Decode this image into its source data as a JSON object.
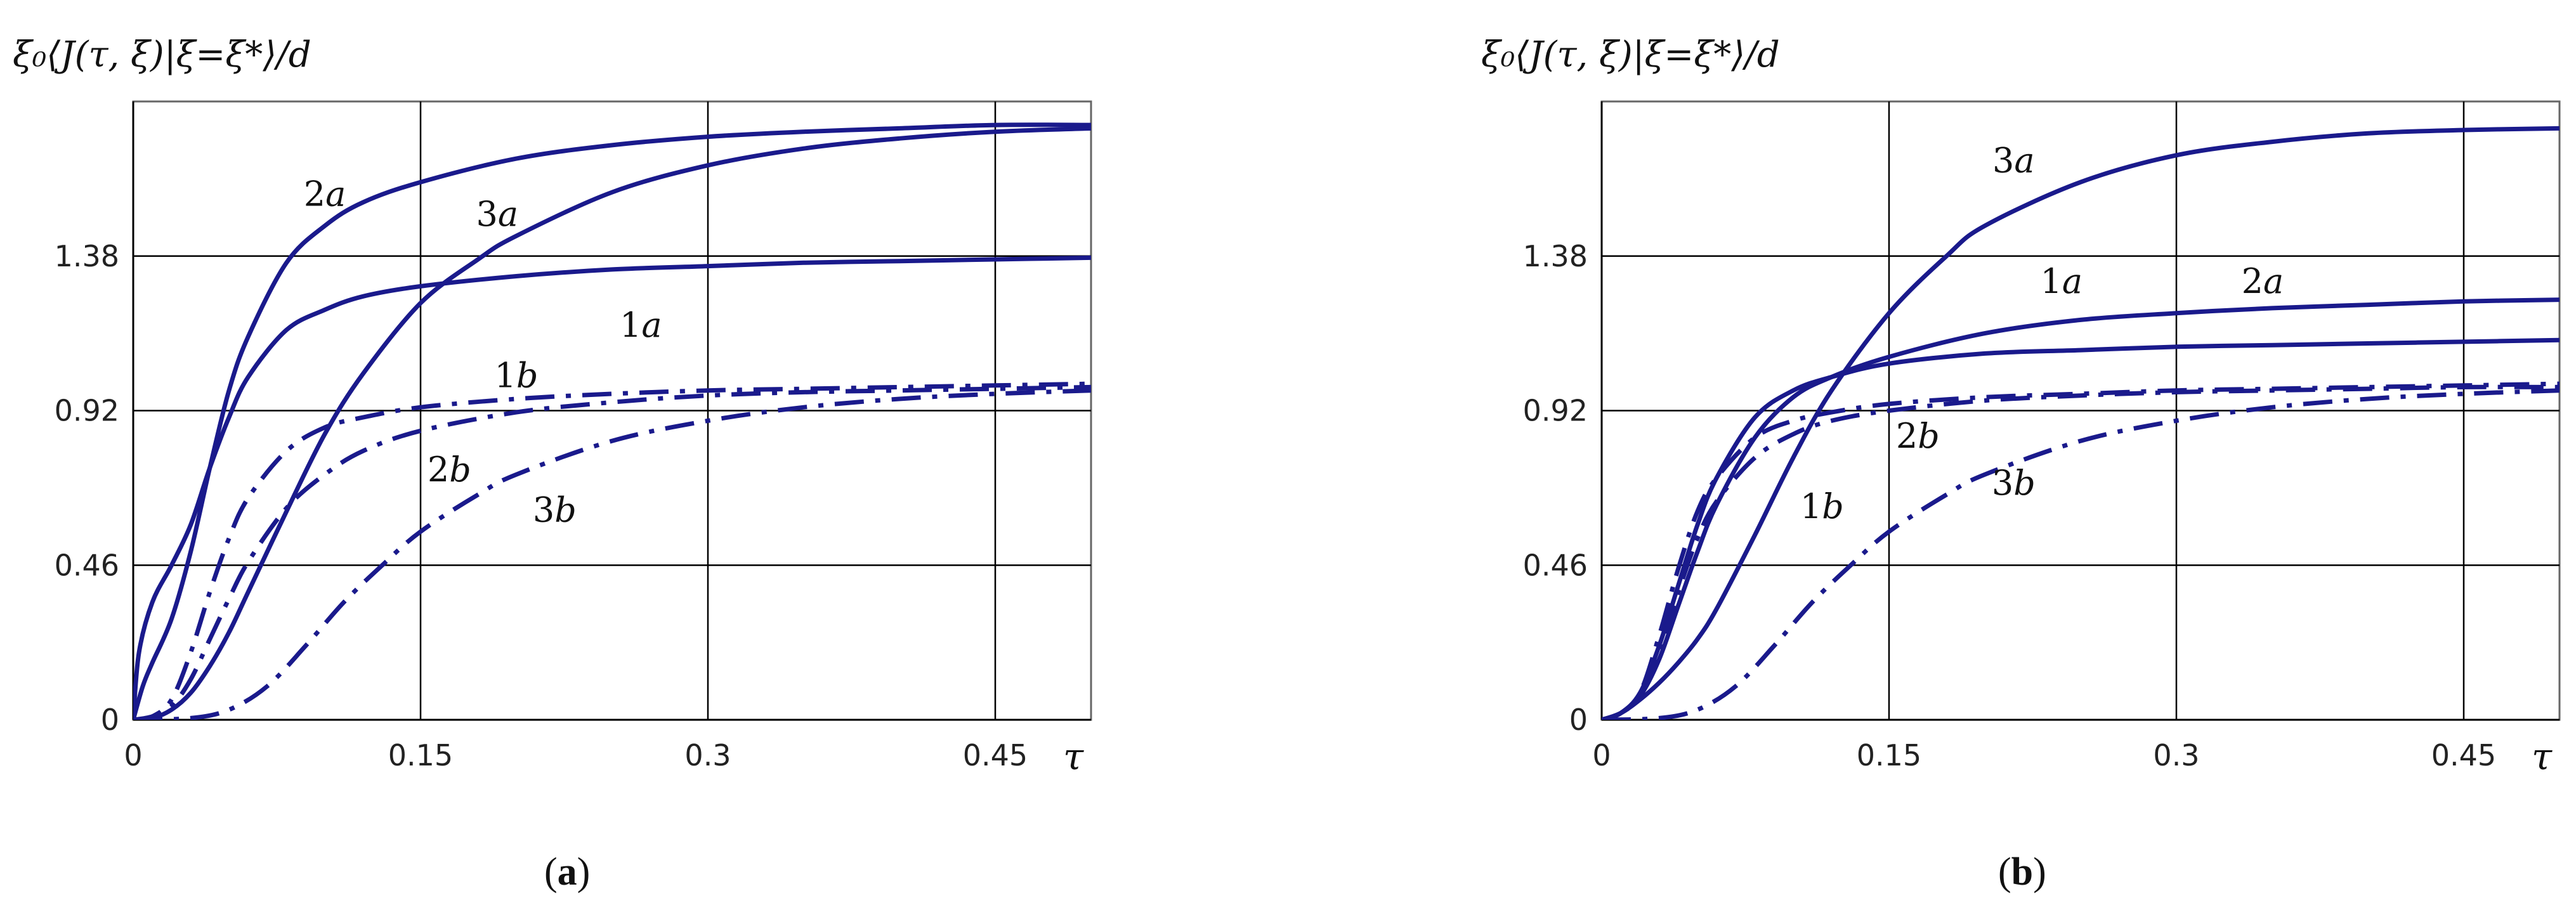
{
  "chart_data": [
    {
      "type": "line",
      "panel": "a",
      "caption_label": "a",
      "ylabel": "ξ₀⟨J(τ, ξ)|ξ=ξ*⟩/d",
      "xlabel": "τ",
      "xlim": [
        0,
        0.5
      ],
      "ylim": [
        0,
        1.84
      ],
      "x_ticks": [
        0,
        0.15,
        0.3,
        0.45
      ],
      "x_tick_labels": [
        "0",
        "0.15",
        "0.3",
        "0.45"
      ],
      "y_ticks": [
        0,
        0.46,
        0.92,
        1.38
      ],
      "y_tick_labels": [
        "0",
        "0.46",
        "0.92",
        "1.38"
      ],
      "grid": true,
      "series": [
        {
          "name": "1a",
          "style": "solid",
          "x": [
            0,
            0.003,
            0.01,
            0.02,
            0.03,
            0.04,
            0.05,
            0.06,
            0.08,
            0.1,
            0.12,
            0.15,
            0.2,
            0.25,
            0.3,
            0.35,
            0.4,
            0.45,
            0.5
          ],
          "y": [
            0,
            0.2,
            0.35,
            0.46,
            0.58,
            0.75,
            0.9,
            1.02,
            1.16,
            1.22,
            1.26,
            1.29,
            1.32,
            1.34,
            1.35,
            1.36,
            1.365,
            1.37,
            1.375
          ]
        },
        {
          "name": "2a",
          "style": "solid",
          "x": [
            0,
            0.005,
            0.01,
            0.02,
            0.03,
            0.04,
            0.05,
            0.06,
            0.08,
            0.1,
            0.12,
            0.15,
            0.2,
            0.25,
            0.3,
            0.35,
            0.4,
            0.45,
            0.5
          ],
          "y": [
            0,
            0.1,
            0.17,
            0.3,
            0.5,
            0.75,
            0.98,
            1.14,
            1.36,
            1.47,
            1.54,
            1.6,
            1.67,
            1.71,
            1.735,
            1.75,
            1.76,
            1.77,
            1.77
          ]
        },
        {
          "name": "3a",
          "style": "solid",
          "x": [
            0,
            0.01,
            0.02,
            0.03,
            0.04,
            0.05,
            0.06,
            0.08,
            0.1,
            0.12,
            0.15,
            0.18,
            0.2,
            0.25,
            0.3,
            0.35,
            0.4,
            0.45,
            0.5
          ],
          "y": [
            0,
            0.005,
            0.03,
            0.08,
            0.16,
            0.26,
            0.38,
            0.62,
            0.85,
            1.03,
            1.24,
            1.37,
            1.44,
            1.57,
            1.65,
            1.7,
            1.73,
            1.75,
            1.76
          ]
        },
        {
          "name": "1b",
          "style": "dashdot",
          "x": [
            0,
            0.01,
            0.02,
            0.03,
            0.04,
            0.05,
            0.06,
            0.08,
            0.1,
            0.12,
            0.15,
            0.2,
            0.25,
            0.3,
            0.35,
            0.4,
            0.45,
            0.5
          ],
          "y": [
            0,
            0.01,
            0.06,
            0.2,
            0.38,
            0.54,
            0.66,
            0.8,
            0.87,
            0.9,
            0.93,
            0.955,
            0.97,
            0.98,
            0.985,
            0.99,
            0.995,
            1.0
          ]
        },
        {
          "name": "2b",
          "style": "dashdot",
          "x": [
            0,
            0.01,
            0.02,
            0.03,
            0.04,
            0.05,
            0.06,
            0.08,
            0.1,
            0.12,
            0.15,
            0.2,
            0.25,
            0.3,
            0.35,
            0.4,
            0.45,
            0.5
          ],
          "y": [
            0,
            0.01,
            0.04,
            0.12,
            0.24,
            0.36,
            0.47,
            0.63,
            0.73,
            0.8,
            0.86,
            0.915,
            0.945,
            0.965,
            0.975,
            0.98,
            0.985,
            0.99
          ]
        },
        {
          "name": "3b",
          "style": "dashdot",
          "x": [
            0,
            0.03,
            0.05,
            0.07,
            0.09,
            0.11,
            0.13,
            0.15,
            0.18,
            0.2,
            0.25,
            0.3,
            0.35,
            0.4,
            0.45,
            0.5
          ],
          "y": [
            0,
            0.005,
            0.03,
            0.1,
            0.22,
            0.35,
            0.46,
            0.56,
            0.67,
            0.73,
            0.83,
            0.89,
            0.93,
            0.955,
            0.97,
            0.98
          ]
        }
      ],
      "labels": [
        {
          "text": "2",
          "var": "a",
          "x": 0.1,
          "y": 1.53
        },
        {
          "text": "3",
          "var": "a",
          "x": 0.19,
          "y": 1.47
        },
        {
          "text": "1",
          "var": "a",
          "x": 0.265,
          "y": 1.14
        },
        {
          "text": "1",
          "var": "b",
          "x": 0.2,
          "y": 0.99
        },
        {
          "text": "2",
          "var": "b",
          "x": 0.165,
          "y": 0.71
        },
        {
          "text": "3",
          "var": "b",
          "x": 0.22,
          "y": 0.59
        }
      ]
    },
    {
      "type": "line",
      "panel": "b",
      "caption_label": "b",
      "ylabel": "ξ₀⟨J(τ, ξ)|ξ=ξ*⟩/d",
      "xlabel": "τ",
      "xlim": [
        0,
        0.5
      ],
      "ylim": [
        0,
        1.84
      ],
      "x_ticks": [
        0,
        0.15,
        0.3,
        0.45
      ],
      "x_tick_labels": [
        "0",
        "0.15",
        "0.3",
        "0.45"
      ],
      "y_ticks": [
        0,
        0.46,
        0.92,
        1.38
      ],
      "y_tick_labels": [
        "0",
        "0.46",
        "0.92",
        "1.38"
      ],
      "grid": true,
      "series": [
        {
          "name": "1a",
          "style": "solid",
          "x": [
            0,
            0.01,
            0.02,
            0.03,
            0.04,
            0.05,
            0.06,
            0.08,
            0.1,
            0.12,
            0.15,
            0.2,
            0.25,
            0.3,
            0.35,
            0.4,
            0.45,
            0.5
          ],
          "y": [
            0,
            0.02,
            0.08,
            0.22,
            0.4,
            0.58,
            0.72,
            0.9,
            0.98,
            1.02,
            1.06,
            1.09,
            1.1,
            1.11,
            1.115,
            1.12,
            1.125,
            1.13
          ]
        },
        {
          "name": "2a",
          "style": "solid",
          "x": [
            0,
            0.01,
            0.02,
            0.03,
            0.04,
            0.05,
            0.06,
            0.08,
            0.1,
            0.12,
            0.15,
            0.2,
            0.25,
            0.3,
            0.35,
            0.4,
            0.45,
            0.5
          ],
          "y": [
            0,
            0.02,
            0.07,
            0.18,
            0.34,
            0.5,
            0.64,
            0.84,
            0.96,
            1.02,
            1.08,
            1.15,
            1.19,
            1.21,
            1.225,
            1.235,
            1.245,
            1.25
          ]
        },
        {
          "name": "3a",
          "style": "solid",
          "x": [
            0,
            0.01,
            0.02,
            0.03,
            0.04,
            0.05,
            0.06,
            0.08,
            0.1,
            0.12,
            0.15,
            0.18,
            0.2,
            0.25,
            0.3,
            0.35,
            0.4,
            0.45,
            0.5
          ],
          "y": [
            0,
            0.02,
            0.06,
            0.11,
            0.17,
            0.24,
            0.33,
            0.55,
            0.78,
            0.98,
            1.21,
            1.38,
            1.47,
            1.6,
            1.68,
            1.72,
            1.745,
            1.755,
            1.76
          ]
        },
        {
          "name": "1b",
          "style": "dashdot",
          "x": [
            0,
            0.01,
            0.02,
            0.03,
            0.04,
            0.05,
            0.06,
            0.08,
            0.1,
            0.12,
            0.15,
            0.2,
            0.25,
            0.3,
            0.35,
            0.4,
            0.45,
            0.5
          ],
          "y": [
            0,
            0.02,
            0.08,
            0.25,
            0.45,
            0.62,
            0.72,
            0.84,
            0.89,
            0.915,
            0.94,
            0.96,
            0.97,
            0.98,
            0.985,
            0.99,
            0.995,
            1.0
          ]
        },
        {
          "name": "2b",
          "style": "dashdot",
          "x": [
            0,
            0.01,
            0.02,
            0.03,
            0.04,
            0.05,
            0.06,
            0.08,
            0.1,
            0.12,
            0.15,
            0.2,
            0.25,
            0.3,
            0.35,
            0.4,
            0.45,
            0.5
          ],
          "y": [
            0,
            0.02,
            0.07,
            0.2,
            0.38,
            0.54,
            0.65,
            0.78,
            0.85,
            0.89,
            0.92,
            0.95,
            0.965,
            0.975,
            0.98,
            0.985,
            0.99,
            0.99
          ]
        },
        {
          "name": "3b",
          "style": "dashdot",
          "x": [
            0,
            0.03,
            0.05,
            0.07,
            0.09,
            0.11,
            0.13,
            0.15,
            0.18,
            0.2,
            0.25,
            0.3,
            0.35,
            0.4,
            0.45,
            0.5
          ],
          "y": [
            0,
            0.005,
            0.03,
            0.1,
            0.22,
            0.35,
            0.46,
            0.56,
            0.67,
            0.73,
            0.83,
            0.89,
            0.93,
            0.955,
            0.97,
            0.98
          ]
        }
      ],
      "labels": [
        {
          "text": "3",
          "var": "a",
          "x": 0.215,
          "y": 1.63
        },
        {
          "text": "1",
          "var": "a",
          "x": 0.24,
          "y": 1.27
        },
        {
          "text": "2",
          "var": "a",
          "x": 0.345,
          "y": 1.27
        },
        {
          "text": "2",
          "var": "b",
          "x": 0.165,
          "y": 0.81
        },
        {
          "text": "1",
          "var": "b",
          "x": 0.115,
          "y": 0.6
        },
        {
          "text": "3",
          "var": "b",
          "x": 0.215,
          "y": 0.67
        }
      ]
    }
  ]
}
